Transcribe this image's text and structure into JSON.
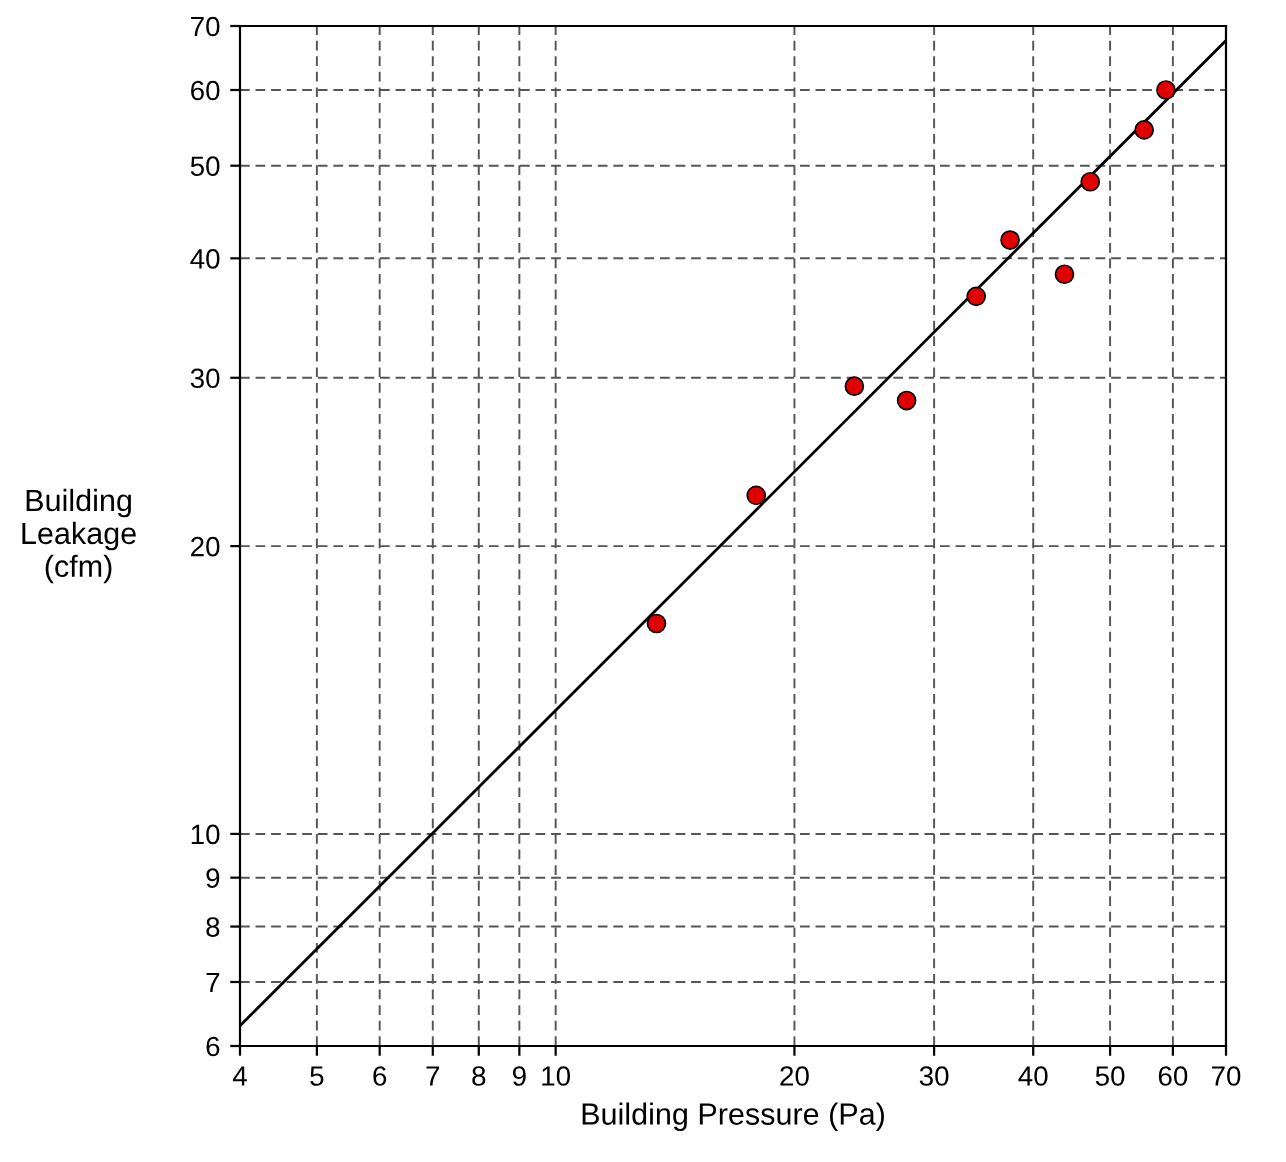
{
  "chart_data": {
    "type": "scatter",
    "xlabel": "Building Pressure (Pa)",
    "ylabel": "Building\nLeakage\n(cfm)",
    "log": "xy",
    "grid": true,
    "xlim": [
      4,
      70
    ],
    "ylim": [
      6,
      70
    ],
    "xticks": [
      4,
      5,
      6,
      7,
      8,
      9,
      10,
      20,
      30,
      40,
      50,
      60,
      70
    ],
    "yticks": [
      6,
      7,
      8,
      9,
      10,
      20,
      30,
      40,
      50,
      60,
      70
    ],
    "series": [
      {
        "color": "#e00000",
        "marker": "circle",
        "x": [
          13.4,
          17.9,
          23.8,
          27.7,
          33.9,
          37.4,
          43.8,
          47.2,
          55.2,
          58.8
        ],
        "values": [
          16.6,
          22.6,
          29.4,
          28.4,
          36.5,
          41.8,
          38.5,
          48.1,
          54.5,
          60
        ]
      },
      {
        "type": "line",
        "color": "#000000",
        "marker": "none",
        "line_style": "solid",
        "x": [
          4,
          70
        ],
        "values": [
          6.3,
          67.6
        ]
      }
    ]
  }
}
